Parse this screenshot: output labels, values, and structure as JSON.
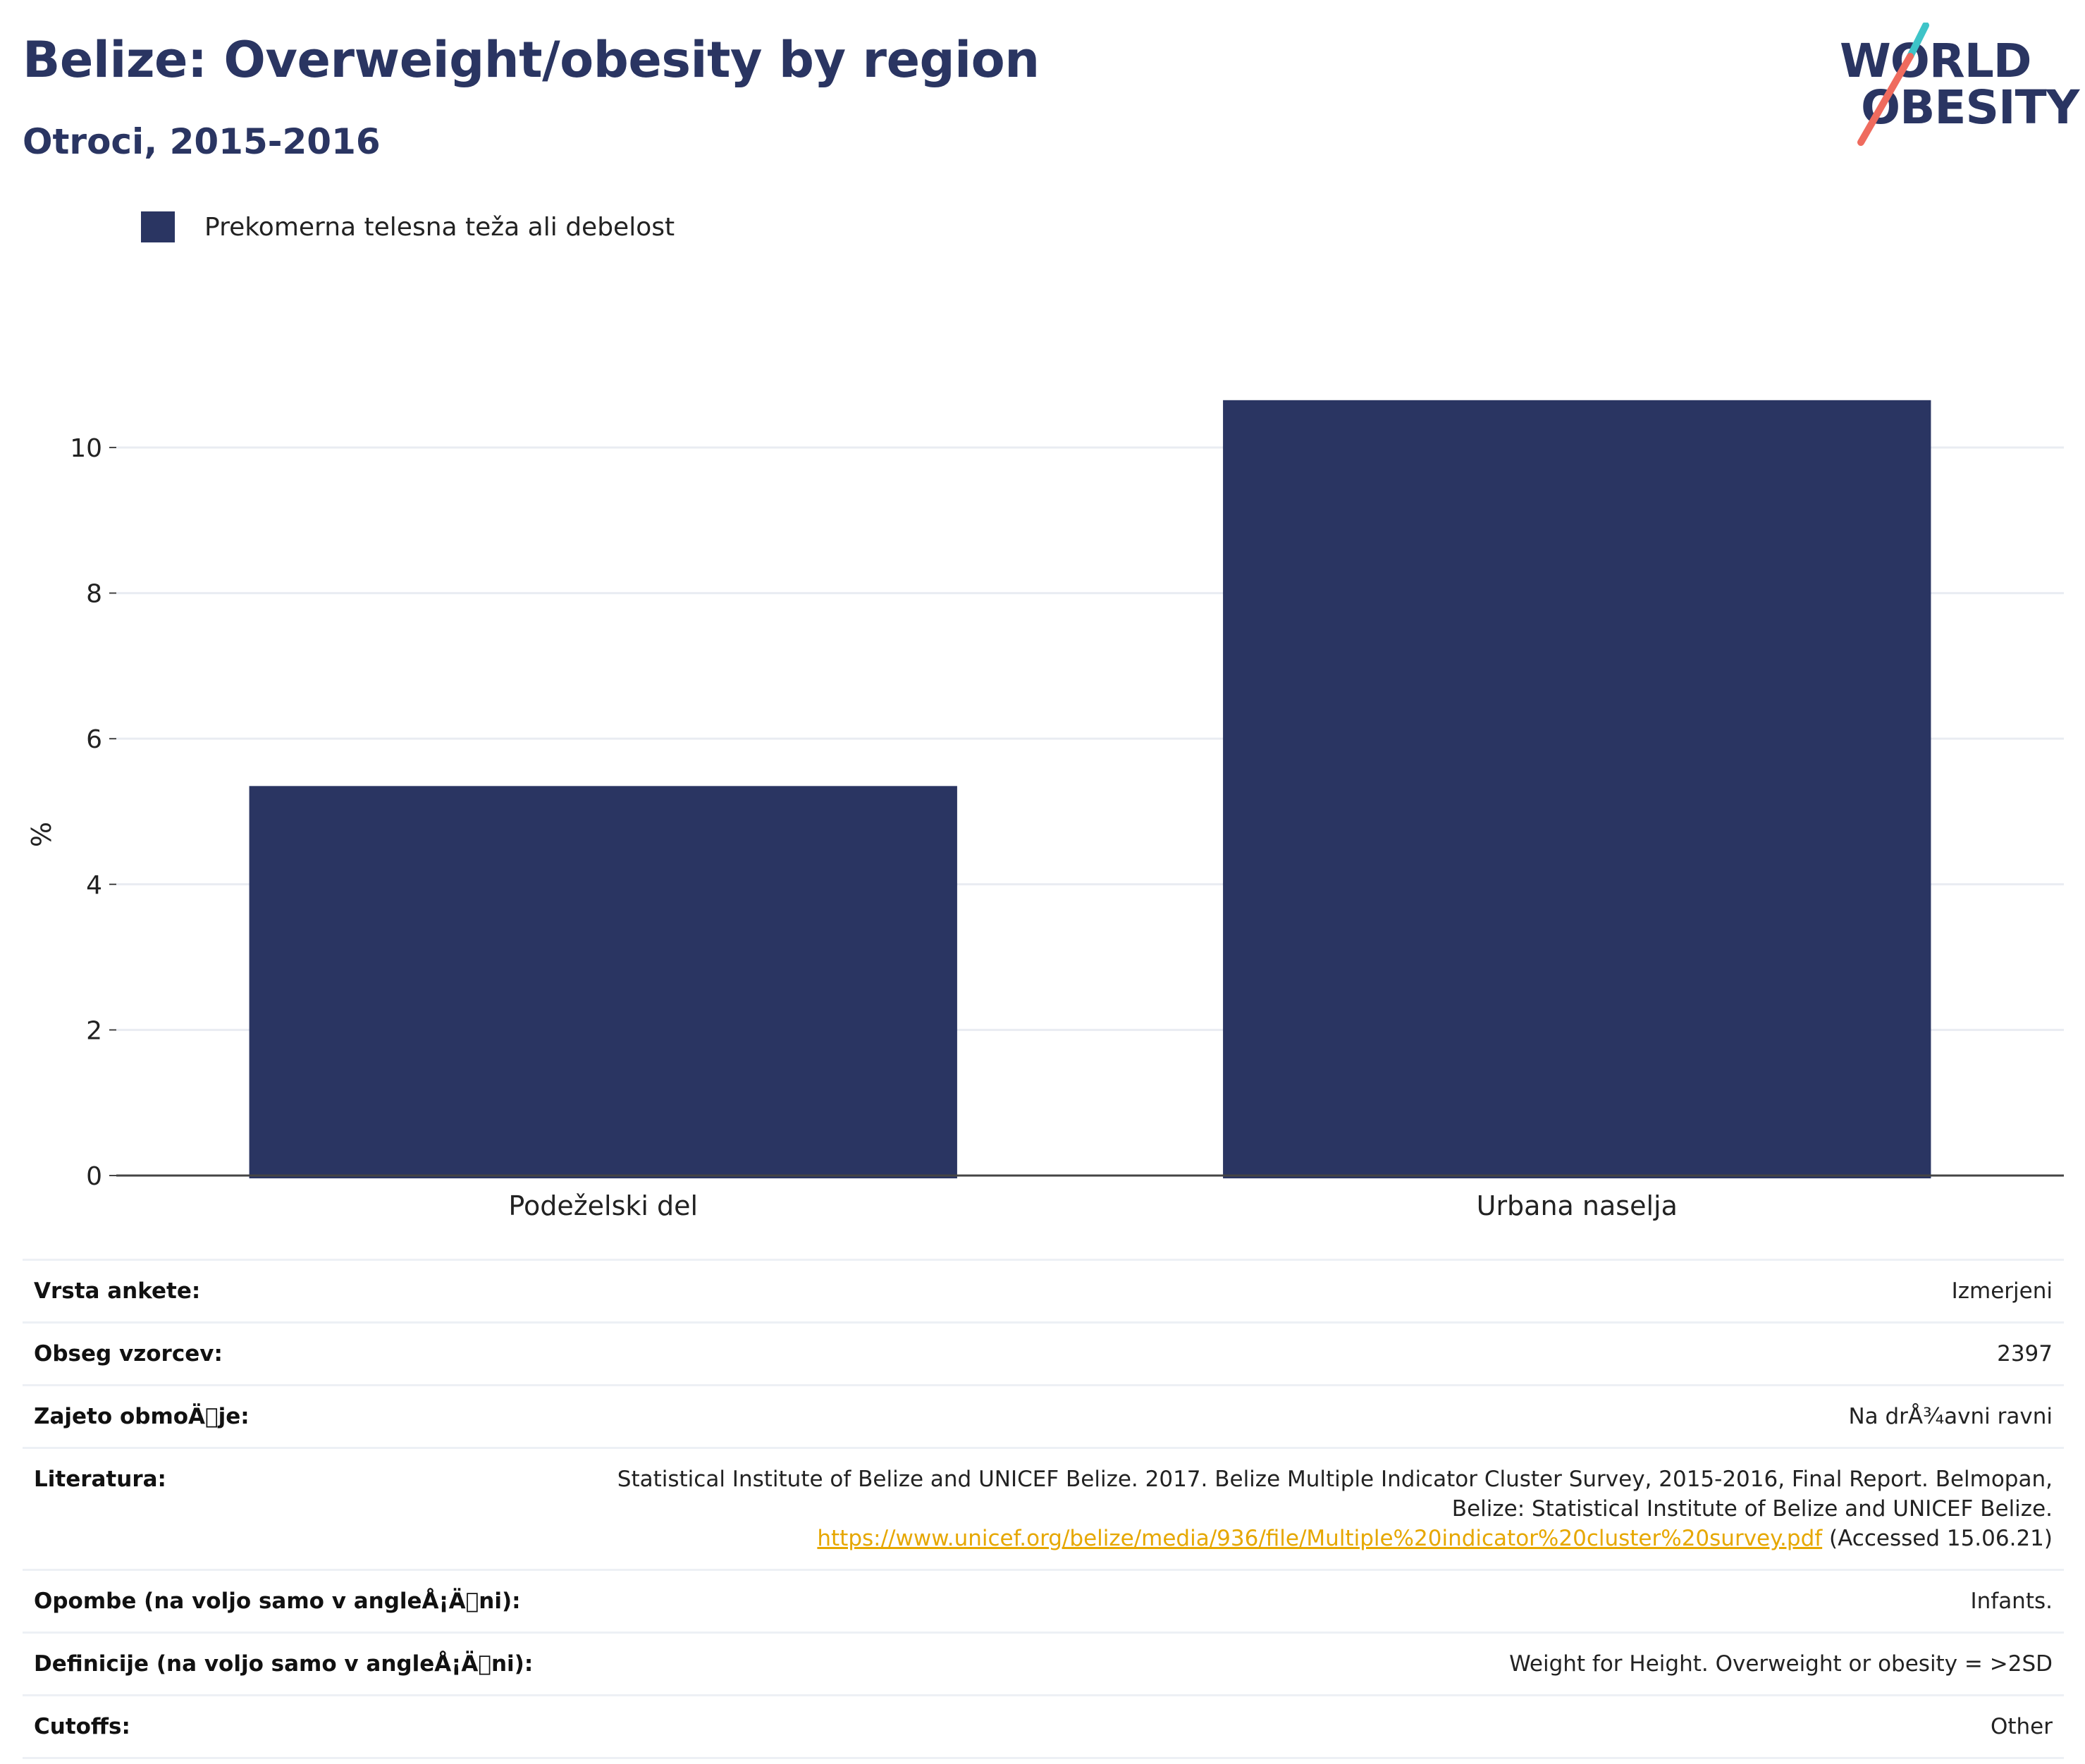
{
  "header": {
    "title": "Belize: Overweight/obesity by region",
    "subtitle": "Otroci, 2015-2016"
  },
  "logo": {
    "line1": "WORLD",
    "line2": "OBESITY",
    "colors": {
      "text": "#2a3562",
      "slash_top": "#3ec4c8",
      "slash_bottom": "#ef6b5e"
    }
  },
  "legend": {
    "label": "Prekomerna telesna teža ali debelost",
    "color": "#2a3562"
  },
  "chart_data": {
    "type": "bar",
    "categories": [
      "Podeželski del",
      "Urbana naselja"
    ],
    "series": [
      {
        "name": "Prekomerna telesna teža ali debelost",
        "values": [
          5.35,
          10.65
        ],
        "color": "#2a3562"
      }
    ],
    "xlabel": "",
    "ylabel": "%",
    "ylim": [
      0,
      11.5
    ],
    "yticks": [
      0,
      2,
      4,
      6,
      8,
      10
    ],
    "grid": true,
    "legend_position": "top-left"
  },
  "meta": {
    "rows": [
      {
        "key": "Vrsta ankete:",
        "value": "Izmerjeni"
      },
      {
        "key": "Obseg vzorcev:",
        "value": "2397"
      },
      {
        "key": "Zajeto obmoÄ\u0000je:",
        "value": "Na drÅ¾avni ravni"
      },
      {
        "key": "Literatura:",
        "value_line1": "Statistical Institute of Belize and UNICEF Belize. 2017. Belize Multiple Indicator Cluster Survey, 2015-2016, Final Report. Belmopan,",
        "value_line2": "Belize: Statistical Institute of Belize and UNICEF Belize.",
        "link": "https://www.unicef.org/belize/media/936/file/Multiple%20indicator%20cluster%20survey.pdf",
        "value_after_link": " (Accessed 15.06.21)"
      },
      {
        "key": "Opombe (na voljo samo v angleÅ¡Ä\u0000ni):",
        "value": "Infants."
      },
      {
        "key": "Definicije (na voljo samo v angleÅ¡Ä\u0000ni):",
        "value": "Weight for Height. Overweight or obesity = >2SD"
      },
      {
        "key": "Cutoffs:",
        "value": "Other"
      }
    ]
  }
}
